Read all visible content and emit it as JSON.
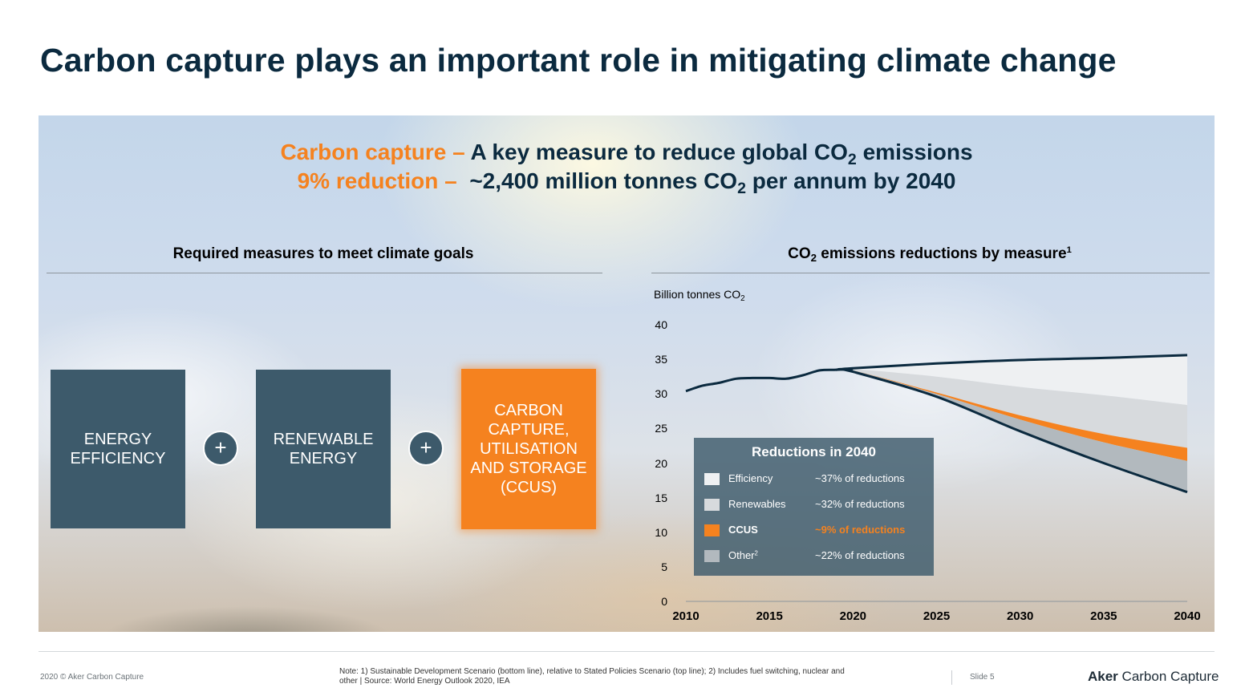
{
  "slide_title": "Carbon capture plays an important role in mitigating climate change",
  "headline": {
    "line1_highlight": "Carbon capture –",
    "line1_text": "A key measure to reduce global CO",
    "line1_sub": "2",
    "line1_end": " emissions",
    "line2_highlight": "9% reduction –",
    "line2_text": "~2,400 million tonnes CO",
    "line2_sub": "2",
    "line2_end": " per annum by 2040"
  },
  "left_section": {
    "title": "Required measures to meet climate goals",
    "measures": [
      "ENERGY EFFICIENCY",
      "RENEWABLE ENERGY",
      "CARBON CAPTURE, UTILISATION AND STORAGE (CCUS)"
    ],
    "plus_symbol": "+"
  },
  "right_section": {
    "title_pre": "CO",
    "title_sub": "2",
    "title_post": " emissions reductions by measure",
    "title_sup": "1"
  },
  "legend": {
    "title": "Reductions in 2040",
    "items": [
      {
        "name": "Efficiency",
        "value": "~37% of reductions",
        "color": "#eef0f2"
      },
      {
        "name": "Renewables",
        "value": "~32% of reductions",
        "color": "#d7dadd"
      },
      {
        "name": "CCUS",
        "value": "~9% of reductions",
        "color": "#f5821f"
      },
      {
        "name": "Other",
        "name_sup": "2",
        "value": "~22% of reductions",
        "color": "#b2b9be"
      }
    ]
  },
  "chart_data": {
    "type": "area",
    "ylabel": "Billion tonnes CO",
    "ylabel_sub": "2",
    "ylim": [
      0,
      40
    ],
    "yticks": [
      0,
      5,
      10,
      15,
      20,
      25,
      30,
      35,
      40
    ],
    "xticks": [
      2010,
      2015,
      2020,
      2025,
      2030,
      2035,
      2040
    ],
    "x": [
      2010,
      2011,
      2012,
      2013,
      2014,
      2015,
      2016,
      2017,
      2018,
      2019,
      2020,
      2025,
      2030,
      2035,
      2040
    ],
    "historical": [
      30.4,
      31.2,
      31.6,
      32.2,
      32.3,
      32.3,
      32.2,
      32.7,
      33.4,
      33.5,
      33.6,
      33.6,
      33.6,
      33.6,
      33.6
    ],
    "series": [
      {
        "name": "Stated Policies Scenario",
        "x": [
          2019,
          2020,
          2025,
          2030,
          2035,
          2040
        ],
        "values": [
          33.5,
          33.7,
          34.4,
          34.9,
          35.2,
          35.6
        ]
      },
      {
        "name": "Efficiency",
        "x": [
          2019,
          2020,
          2025,
          2030,
          2035,
          2040
        ],
        "values": [
          33.5,
          33.6,
          32.5,
          31.0,
          29.8,
          28.4
        ]
      },
      {
        "name": "Renewables",
        "x": [
          2019,
          2020,
          2025,
          2030,
          2035,
          2040
        ],
        "values": [
          33.5,
          33.4,
          30.2,
          26.9,
          24.2,
          22.2
        ]
      },
      {
        "name": "CCUS",
        "x": [
          2019,
          2020,
          2025,
          2030,
          2035,
          2040
        ],
        "values": [
          33.5,
          33.4,
          30.0,
          26.3,
          23.0,
          20.3
        ]
      },
      {
        "name": "Sustainable Development Scenario",
        "x": [
          2019,
          2020,
          2025,
          2030,
          2035,
          2040
        ],
        "values": [
          33.5,
          33.2,
          29.6,
          24.6,
          20.0,
          15.8
        ]
      }
    ],
    "colors": {
      "line": "#0b2a3f",
      "efficiency": "#eef0f2",
      "renewables": "#d7dadd",
      "ccus": "#f5821f",
      "other": "#b2b9be"
    }
  },
  "footer": {
    "copyright": "2020 © Aker Carbon Capture",
    "note_line1": "Note: 1) Sustainable Development Scenario (bottom line), relative to Stated Policies Scenario (top line); 2) Includes fuel switching, nuclear and",
    "note_line2": "other | Source: World Energy Outlook 2020, IEA",
    "slide": "Slide 5",
    "brand_bold": "Aker",
    "brand_rest": " Carbon Capture"
  }
}
